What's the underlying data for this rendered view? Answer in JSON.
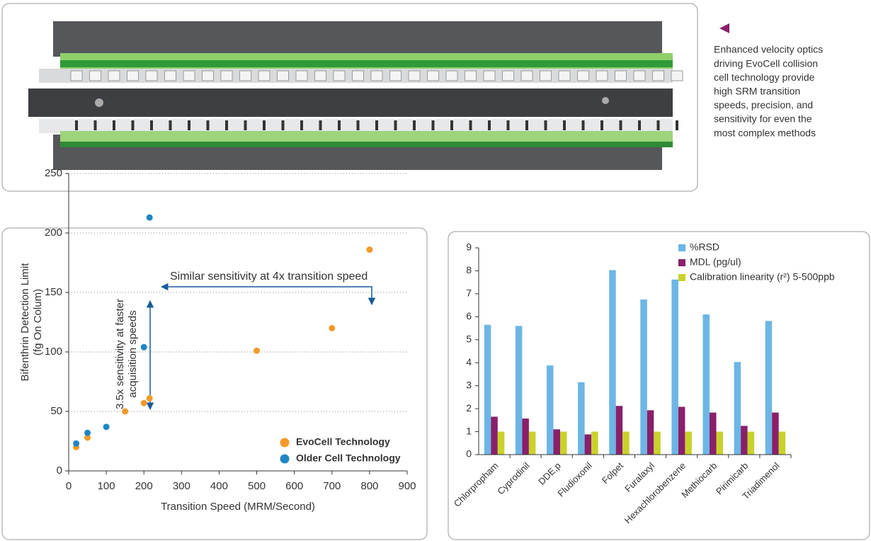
{
  "caption": [
    "Enhanced velocity optics",
    "driving EvoCell collision",
    "cell technology provide",
    "high SRM transition",
    "speeds, precision, and",
    "sensitivity  for even the",
    "most complex methods"
  ],
  "chart_data": [
    {
      "type": "scatter",
      "x_label": "Transition Speed (MRM/Second)",
      "y_label": [
        "Bifenthrin Detection Limit",
        "(fg On Colum)"
      ],
      "annotations": [
        "Similar sensitivity at 4x transition speed",
        "3.5x sensitivity at faster",
        "acquisition speeds"
      ],
      "xlim": [
        0,
        900
      ],
      "xticks": [
        0,
        100,
        200,
        300,
        400,
        500,
        600,
        700,
        800,
        900
      ],
      "ylim": [
        0,
        250
      ],
      "yticks": [
        0,
        50,
        100,
        150,
        200,
        250
      ],
      "grid": true,
      "legend": "lower right",
      "series": [
        {
          "name": "EvoCell Technology",
          "color": "#f39a2b",
          "x": [
            20,
            50,
            150,
            200,
            215,
            500,
            700,
            800
          ],
          "values": [
            20,
            28,
            50,
            57,
            61,
            101,
            120,
            186
          ]
        },
        {
          "name": "Older Cell Technology",
          "color": "#1f86c6",
          "x": [
            20,
            50,
            100,
            200,
            215
          ],
          "values": [
            23,
            32,
            37,
            104,
            213
          ]
        }
      ]
    },
    {
      "type": "bar",
      "categories": [
        "Chlorpropham",
        "Cyprodinil",
        "DDE,p",
        "Fludioxonil",
        "Folpet",
        "Furalaxyl",
        "Hexachlorobenzene",
        "Methiocarb",
        "Pirimicarb",
        "Triadimenol"
      ],
      "ylim": [
        0,
        9
      ],
      "yticks": [
        0,
        1,
        2,
        3,
        4,
        5,
        6,
        7,
        8,
        9
      ],
      "legend": "upper right",
      "series": [
        {
          "name": "%RSD",
          "color": "#6cb6e6",
          "values": [
            5.65,
            5.6,
            3.88,
            3.15,
            8.03,
            6.75,
            7.62,
            6.1,
            4.03,
            5.82
          ]
        },
        {
          "name": "MDL (pg/ul)",
          "color": "#8a1f6a",
          "values": [
            1.65,
            1.57,
            1.1,
            0.88,
            2.12,
            1.93,
            2.08,
            1.83,
            1.25,
            1.83
          ]
        },
        {
          "name": "Calibration linearity (r²) 5-500ppb",
          "color": "#c8d22a",
          "values": [
            1,
            1,
            1,
            1,
            1,
            1,
            1,
            1,
            1,
            1
          ]
        }
      ]
    }
  ]
}
